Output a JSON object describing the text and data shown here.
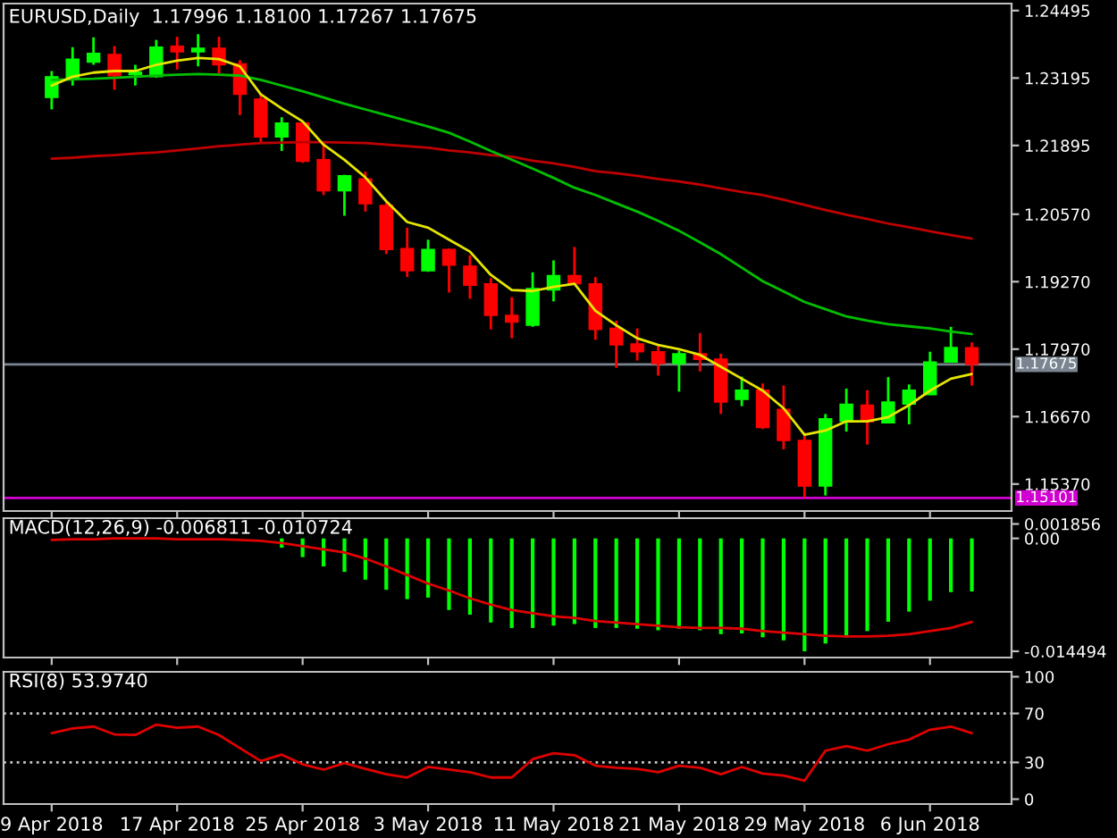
{
  "chart_data": [
    {
      "type": "candlestick",
      "title": "EURUSD,Daily  1.17996 1.18100 1.17267 1.17675",
      "categories": [
        null,
        null,
        null,
        null,
        null,
        null,
        null,
        null,
        null,
        null,
        null,
        null,
        null,
        null,
        null,
        null,
        null,
        null,
        null,
        null,
        null,
        null,
        null,
        null,
        null,
        null,
        null,
        null,
        null,
        null,
        null,
        null,
        null,
        null,
        null,
        null,
        null,
        null,
        null,
        null,
        null,
        null,
        null,
        null,
        null
      ],
      "ohlc": [
        [
          1.2282,
          1.2333,
          1.2259,
          1.2322
        ],
        [
          1.2318,
          1.2379,
          1.2305,
          1.2356
        ],
        [
          1.235,
          1.2398,
          1.2345,
          1.2367
        ],
        [
          1.2365,
          1.2381,
          1.2297,
          1.2324
        ],
        [
          1.2326,
          1.2345,
          1.2305,
          1.2331
        ],
        [
          1.2322,
          1.2393,
          1.232,
          1.2379
        ],
        [
          1.2381,
          1.2399,
          1.2336,
          1.237
        ],
        [
          1.237,
          1.2404,
          1.2342,
          1.2377
        ],
        [
          1.2377,
          1.2399,
          1.2328,
          1.2345
        ],
        [
          1.2347,
          1.2354,
          1.2248,
          1.2288
        ],
        [
          1.2279,
          1.229,
          1.2196,
          1.2206
        ],
        [
          1.2206,
          1.2244,
          1.2179,
          1.2233
        ],
        [
          1.2233,
          1.2236,
          1.2156,
          1.2159
        ],
        [
          1.2162,
          1.2194,
          1.2094,
          1.2102
        ],
        [
          1.2102,
          1.2133,
          1.2054,
          1.2131
        ],
        [
          1.2125,
          1.2139,
          1.2062,
          1.2077
        ],
        [
          1.2074,
          1.2082,
          1.198,
          1.1989
        ],
        [
          1.1991,
          1.2031,
          1.1936,
          1.1948
        ],
        [
          1.1948,
          1.2008,
          1.1946,
          1.1989
        ],
        [
          1.1989,
          1.1991,
          1.1906,
          1.1959
        ],
        [
          1.1957,
          1.1978,
          1.1894,
          1.192
        ],
        [
          1.1923,
          1.1934,
          1.1835,
          1.1862
        ],
        [
          1.1862,
          1.1897,
          1.1818,
          1.1849
        ],
        [
          1.1843,
          1.1945,
          1.184,
          1.1914
        ],
        [
          1.1911,
          1.1968,
          1.1889,
          1.1939
        ],
        [
          1.1939,
          1.1994,
          1.192,
          1.1923
        ],
        [
          1.1923,
          1.1936,
          1.1815,
          1.1835
        ],
        [
          1.1837,
          1.1852,
          1.1761,
          1.1805
        ],
        [
          1.1807,
          1.1837,
          1.1775,
          1.1792
        ],
        [
          1.1792,
          1.1803,
          1.1746,
          1.1769
        ],
        [
          1.1769,
          1.1794,
          1.1715,
          1.1788
        ],
        [
          1.1788,
          1.1828,
          1.1754,
          1.1777
        ],
        [
          1.1778,
          1.1788,
          1.1672,
          1.1695
        ],
        [
          1.17,
          1.1744,
          1.1687,
          1.1718
        ],
        [
          1.1718,
          1.1731,
          1.1643,
          1.1646
        ],
        [
          1.1681,
          1.1727,
          1.1604,
          1.1621
        ],
        [
          1.1621,
          1.1636,
          1.151,
          1.1533
        ],
        [
          1.1533,
          1.1672,
          1.1515,
          1.1663
        ],
        [
          1.1658,
          1.1721,
          1.1638,
          1.1691
        ],
        [
          1.1689,
          1.1718,
          1.1613,
          1.1657
        ],
        [
          1.1655,
          1.1743,
          1.1655,
          1.1695
        ],
        [
          1.1691,
          1.1729,
          1.1652,
          1.1718
        ],
        [
          1.1709,
          1.1792,
          1.1709,
          1.1772
        ],
        [
          1.1772,
          1.184,
          1.1772,
          1.18
        ],
        [
          1.17996,
          1.181,
          1.17267,
          1.17675
        ]
      ],
      "colors": [
        "#00ff00",
        "#00ff00",
        "#00ff00",
        "#ff0000",
        "#00ff00",
        "#00ff00",
        "#ff0000",
        "#00ff00",
        "#ff0000",
        "#ff0000",
        "#ff0000",
        "#00ff00",
        "#ff0000",
        "#ff0000",
        "#00ff00",
        "#ff0000",
        "#ff0000",
        "#ff0000",
        "#00ff00",
        "#ff0000",
        "#ff0000",
        "#ff0000",
        "#ff0000",
        "#00ff00",
        "#00ff00",
        "#ff0000",
        "#ff0000",
        "#ff0000",
        "#ff0000",
        "#ff0000",
        "#00ff00",
        "#ff0000",
        "#ff0000",
        "#00ff00",
        "#ff0000",
        "#ff0000",
        "#ff0000",
        "#00ff00",
        "#00ff00",
        "#ff0000",
        "#00ff00",
        "#00ff00",
        "#00ff00",
        "#00ff00",
        "#ff0000"
      ],
      "series": [
        {
          "type": "line",
          "color": "#c00000",
          "values": [
            1.2164,
            1.2166,
            1.2169,
            1.2171,
            1.2174,
            1.2176,
            1.218,
            1.2184,
            1.2188,
            1.2191,
            1.2194,
            1.2195,
            1.2196,
            1.2196,
            1.2195,
            1.2194,
            1.2191,
            1.2188,
            1.2185,
            1.218,
            1.2176,
            1.2171,
            1.2168,
            1.216,
            1.2155,
            1.2148,
            1.214,
            1.2136,
            1.2131,
            1.2125,
            1.212,
            1.2114,
            1.2107,
            1.21,
            1.2094,
            1.2085,
            1.2075,
            1.2065,
            1.2056,
            1.2048,
            1.2039,
            1.2032,
            1.2024,
            1.2017,
            1.201
          ]
        },
        {
          "type": "line",
          "color": "#00c000",
          "values": [
            1.2316,
            1.2317,
            1.2318,
            1.232,
            1.2322,
            1.2324,
            1.2326,
            1.2327,
            1.2326,
            1.2324,
            1.2316,
            1.2305,
            1.2294,
            1.2282,
            1.227,
            1.2259,
            1.2248,
            1.2237,
            1.2226,
            1.2214,
            1.2197,
            1.2179,
            1.2162,
            1.2145,
            1.2127,
            1.2108,
            1.2094,
            1.2078,
            1.2062,
            1.2044,
            1.2025,
            1.2003,
            1.198,
            1.1954,
            1.1928,
            1.1908,
            1.1888,
            1.1874,
            1.186,
            1.1852,
            1.1845,
            1.1841,
            1.1837,
            1.1831,
            1.1826
          ]
        },
        {
          "type": "line",
          "color": "#e6e600",
          "values": [
            1.2305,
            1.2322,
            1.233,
            1.2333,
            1.2333,
            1.2345,
            1.2353,
            1.2358,
            1.2356,
            1.2342,
            1.2288,
            1.2261,
            1.2236,
            1.2191,
            1.2162,
            1.2128,
            1.2082,
            1.2042,
            1.2031,
            1.2008,
            1.1985,
            1.194,
            1.1911,
            1.1909,
            1.1917,
            1.1923,
            1.1871,
            1.1843,
            1.1818,
            1.1805,
            1.1797,
            1.1786,
            1.1763,
            1.174,
            1.1717,
            1.1683,
            1.1632,
            1.164,
            1.1658,
            1.1658,
            1.1666,
            1.1689,
            1.1717,
            1.174,
            1.1749
          ]
        }
      ],
      "ylim": [
        1.1485,
        1.2463
      ],
      "yticks": [
        1.24495,
        1.23195,
        1.21895,
        {
          "value": 1.2057,
          "label": "1.20570"
        },
        {
          "value": 1.1927,
          "label": "1.19270"
        },
        {
          "value": 1.1797,
          "label": "1.17970"
        },
        {
          "value": 1.1667,
          "label": "1.16670"
        },
        {
          "value": 1.1537,
          "label": "1.15370"
        }
      ],
      "ref_lines": [
        {
          "axis": "y",
          "value": 1.17675,
          "label": "1.17675",
          "color": "#7a8591",
          "line_style": "solid"
        },
        {
          "axis": "y",
          "value": 1.15101,
          "label": "1.15101",
          "color": "#d000d0",
          "line_style": "solid"
        }
      ],
      "tick_labels": "y"
    },
    {
      "type": "bar",
      "title": "MACD(12,26,9) -0.006811 -0.010724",
      "categories": [
        null,
        null,
        null,
        null,
        null,
        null,
        null,
        null,
        null,
        null,
        null,
        null,
        null,
        null,
        null,
        null,
        null,
        null,
        null,
        null,
        null,
        null,
        null,
        null,
        null,
        null,
        null,
        null,
        null,
        null,
        null,
        null,
        null,
        null,
        null,
        null,
        null,
        null,
        null,
        null,
        null,
        null,
        null,
        null,
        null
      ],
      "series": [
        {
          "type": "bar",
          "color": "#00ff00",
          "values": [
            null,
            null,
            null,
            null,
            null,
            null,
            null,
            null,
            null,
            null,
            null,
            -0.0012,
            -0.0024,
            -0.0036,
            -0.0043,
            -0.0053,
            -0.0066,
            -0.0078,
            -0.0076,
            -0.0092,
            -0.0098,
            -0.0108,
            -0.0115,
            -0.0115,
            -0.0112,
            -0.011,
            -0.0115,
            -0.0115,
            -0.0116,
            -0.0118,
            -0.0116,
            -0.0118,
            -0.0123,
            -0.0122,
            -0.0127,
            -0.0131,
            -0.014494,
            -0.0135,
            -0.0127,
            -0.0119,
            -0.0107,
            -0.0094,
            -0.008,
            -0.0069,
            -0.006811
          ]
        },
        {
          "type": "line",
          "color": "#e00000",
          "values": [
            -0.0002,
            -0.0001,
            -0.0001,
            0.0,
            0.0,
            0.0,
            -0.0001,
            -0.0001,
            -0.0001,
            -0.0002,
            -0.0003,
            -0.0006,
            -0.001,
            -0.0014,
            -0.0018,
            -0.0026,
            -0.0036,
            -0.0047,
            -0.0058,
            -0.0067,
            -0.0077,
            -0.0085,
            -0.0092,
            -0.0096,
            -0.01,
            -0.0102,
            -0.0106,
            -0.0108,
            -0.011,
            -0.0112,
            -0.0114,
            -0.0115,
            -0.0115,
            -0.0116,
            -0.0119,
            -0.0121,
            -0.0123,
            -0.0125,
            -0.0126,
            -0.0126,
            -0.0125,
            -0.0123,
            -0.0119,
            -0.0115,
            -0.010724
          ]
        }
      ],
      "ylim": [
        -0.0153,
        0.0026
      ],
      "yticks": [
        0.001856,
        {
          "value": 0,
          "label": "0.00"
        },
        -0.014494
      ],
      "tick_labels": "y"
    },
    {
      "type": "line",
      "title": "RSI(8) 53.9740",
      "categories": [
        "9 Apr 2018",
        null,
        null,
        null,
        null,
        null,
        "17 Apr 2018",
        null,
        null,
        null,
        null,
        null,
        "25 Apr 2018",
        null,
        null,
        null,
        null,
        null,
        "3 May 2018",
        null,
        null,
        null,
        null,
        null,
        "11 May 2018",
        null,
        null,
        null,
        null,
        null,
        "21 May 2018",
        null,
        null,
        null,
        null,
        null,
        "29 May 2018",
        null,
        null,
        null,
        null,
        null,
        "6 Jun 2018",
        null,
        null
      ],
      "series": [
        {
          "color": "#e00000",
          "values": [
            54.0,
            57.7,
            59.3,
            52.9,
            52.4,
            60.9,
            58.3,
            59.3,
            52.4,
            41.7,
            31.1,
            36.4,
            28.4,
            24.1,
            29.5,
            24.7,
            20.4,
            17.7,
            26.3,
            24.1,
            22.0,
            17.7,
            17.7,
            32.7,
            37.5,
            35.9,
            27.3,
            25.7,
            24.7,
            22.0,
            27.3,
            25.7,
            20.4,
            26.3,
            20.9,
            19.3,
            15.1,
            39.6,
            43.3,
            39.6,
            44.9,
            48.7,
            56.7,
            59.3,
            53.974
          ]
        }
      ],
      "ylim": [
        -4,
        104
      ],
      "yticks": [
        100,
        70,
        30,
        0
      ],
      "ref_lines": [
        {
          "axis": "y",
          "value": 70,
          "color": "#c8c8c8",
          "line_style": "dotted"
        },
        {
          "axis": "y",
          "value": 30,
          "color": "#c8c8c8",
          "line_style": "dotted"
        }
      ]
    }
  ]
}
